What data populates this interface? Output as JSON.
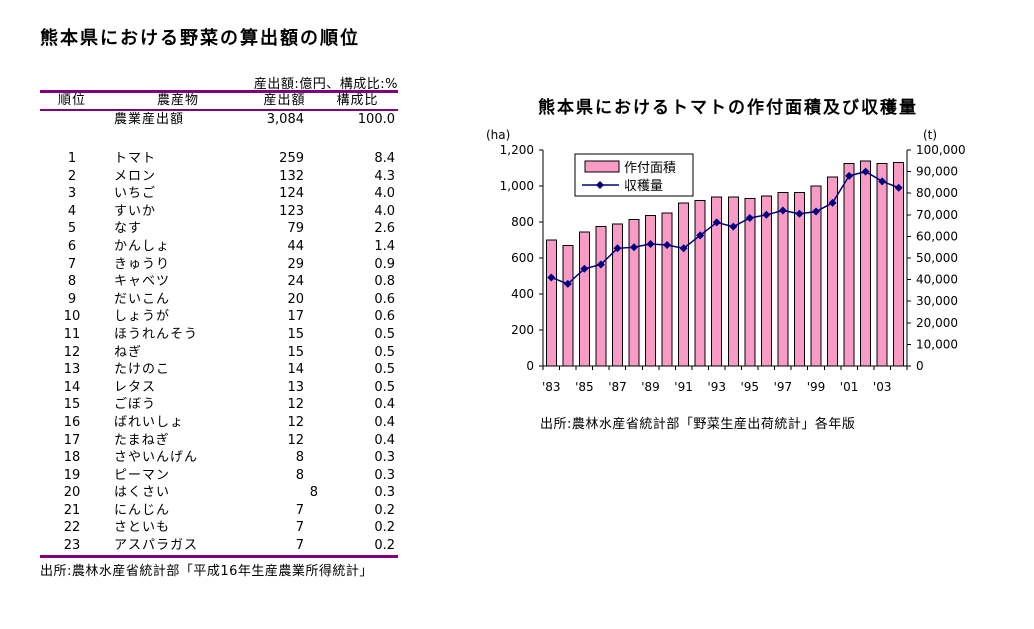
{
  "left_panel": {
    "title": "熊本県における野菜の算出額の順位",
    "unit_note": "産出額:億円、構成比:%",
    "columns": [
      "順位",
      "農産物",
      "産出額",
      "構成比"
    ],
    "total_row": [
      "",
      "農業産出額",
      "3,084",
      "100.0"
    ],
    "rows": [
      [
        "1",
        "トマト",
        "259",
        "8.4"
      ],
      [
        "2",
        "メロン",
        "132",
        "4.3"
      ],
      [
        "3",
        "いちご",
        "124",
        "4.0"
      ],
      [
        "4",
        "すいか",
        "123",
        "4.0"
      ],
      [
        "5",
        "なす",
        "79",
        "2.6"
      ],
      [
        "6",
        "かんしょ",
        "44",
        "1.4"
      ],
      [
        "7",
        "きゅうり",
        "29",
        "0.9"
      ],
      [
        "8",
        "キャベツ",
        "24",
        "0.8"
      ],
      [
        "9",
        "だいこん",
        "20",
        "0.6"
      ],
      [
        "10",
        "しょうが",
        "17",
        "0.6"
      ],
      [
        "11",
        "ほうれんそう",
        "15",
        "0.5"
      ],
      [
        "12",
        "ねぎ",
        "15",
        "0.5"
      ],
      [
        "13",
        "たけのこ",
        "14",
        "0.5"
      ],
      [
        "14",
        "レタス",
        "13",
        "0.5"
      ],
      [
        "15",
        "ごぼう",
        "12",
        "0.4"
      ],
      [
        "16",
        "ばれいしょ",
        "12",
        "0.4"
      ],
      [
        "17",
        "たまねぎ",
        "12",
        "0.4"
      ],
      [
        "18",
        "さやいんげん",
        "8",
        "0.3"
      ],
      [
        "19",
        "ピーマン",
        "8",
        "0.3"
      ],
      [
        "20",
        "はくさい",
        "8",
        "0.3"
      ],
      [
        "21",
        "にんじん",
        "7",
        "0.2"
      ],
      [
        "22",
        "さといも",
        "7",
        "0.2"
      ],
      [
        "23",
        "アスパラガス",
        "7",
        "0.2"
      ]
    ],
    "shifted_output_rank": "20",
    "source": "出所:農林水産省統計部「平成16年生産農業所得統計」"
  },
  "chart": {
    "title": "熊本県におけるトマトの作付面積及び収穫量",
    "source": "出所:農林水産省統計部「野菜生産出荷統計」各年版",
    "left_axis": {
      "unit": "(ha)",
      "ticks": [
        "0",
        "200",
        "400",
        "600",
        "800",
        "1,000",
        "1,200"
      ]
    },
    "right_axis": {
      "unit": "(t)",
      "ticks": [
        "0",
        "10,000",
        "20,000",
        "30,000",
        "40,000",
        "50,000",
        "60,000",
        "70,000",
        "80,000",
        "90,000",
        "100,000"
      ]
    }
  },
  "chart_data": {
    "type": "bar+line",
    "categories": [
      1983,
      1984,
      1985,
      1986,
      1987,
      1988,
      1989,
      1990,
      1991,
      1992,
      1993,
      1994,
      1995,
      1996,
      1997,
      1998,
      1999,
      2000,
      2001,
      2002,
      2003,
      2004
    ],
    "x_tick_labels": [
      "'83",
      "'85",
      "'87",
      "'89",
      "'91",
      "'93",
      "'95",
      "'97",
      "'99",
      "'01",
      "'03"
    ],
    "series": [
      {
        "name": "作付面積",
        "type": "bar",
        "axis": "left",
        "unit": "ha",
        "values": [
          700,
          670,
          745,
          775,
          790,
          815,
          835,
          850,
          905,
          920,
          940,
          940,
          930,
          945,
          965,
          965,
          1000,
          1050,
          1125,
          1140,
          1125,
          1130
        ]
      },
      {
        "name": "収穫量",
        "type": "line",
        "axis": "right",
        "unit": "t",
        "values": [
          41000,
          38000,
          45000,
          47000,
          54500,
          55000,
          56500,
          56000,
          54500,
          60500,
          66500,
          64500,
          68500,
          70000,
          72000,
          70500,
          71500,
          75500,
          88000,
          90000,
          85500,
          82500
        ]
      }
    ],
    "left_ylim": [
      0,
      1200
    ],
    "right_ylim": [
      0,
      100000
    ],
    "legend_position": "top-left-inside",
    "grid": false,
    "colors": {
      "bar_fill": "#F89CC6",
      "bar_border": "#000000",
      "line": "#000080",
      "axis": "#000000"
    }
  },
  "theme": {
    "rule_color": "#800080",
    "background": "#FFFFFF",
    "text_color": "#000000"
  }
}
